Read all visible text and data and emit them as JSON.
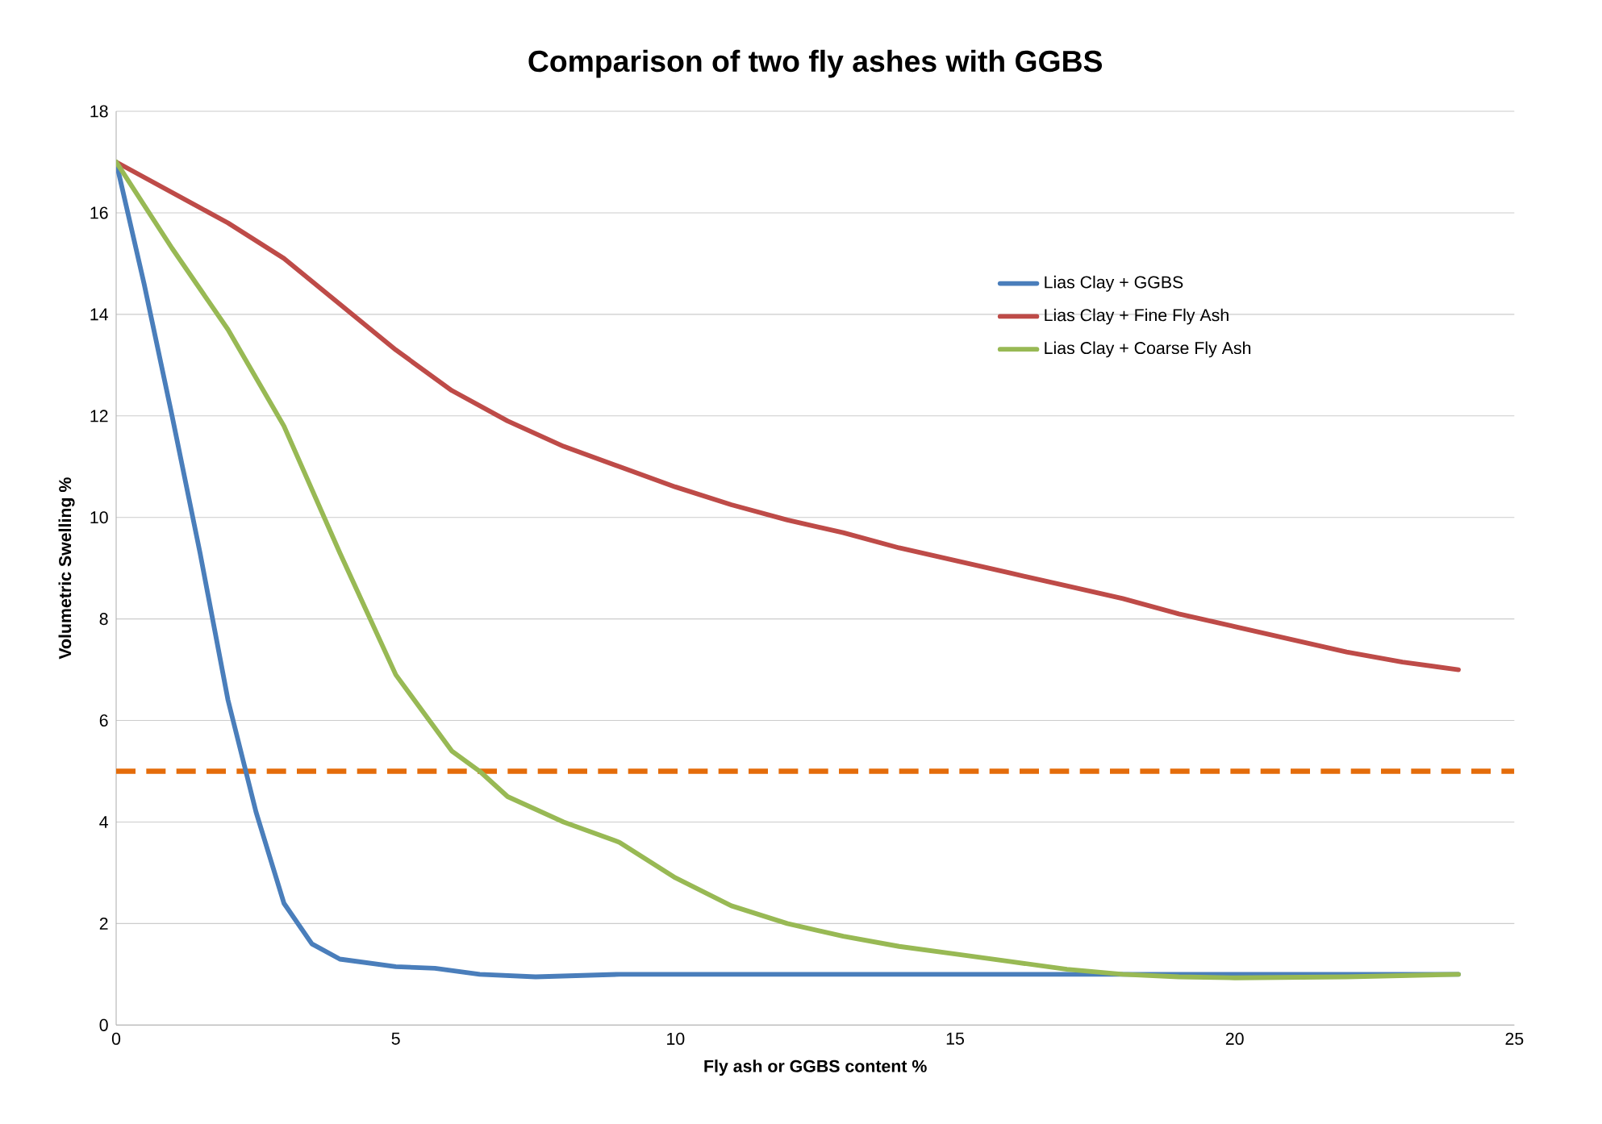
{
  "chart_data": {
    "type": "line",
    "title": "Comparison of two fly ashes with GGBS",
    "xlabel": "Fly ash or GGBS content %",
    "ylabel": "Volumetric Swelling %",
    "xlim": [
      0,
      25
    ],
    "xticks": [
      0,
      5,
      10,
      15,
      20,
      25
    ],
    "ylim": [
      0,
      18
    ],
    "yticks": [
      0,
      2,
      4,
      6,
      8,
      10,
      12,
      14,
      16,
      18
    ],
    "grid": "y",
    "legend": "top right",
    "marker": "none",
    "line_style": "solid",
    "series": [
      {
        "name": "Lias Clay + GGBS",
        "color": "#4a7ebb",
        "x": [
          0,
          0.5,
          1,
          1.5,
          2,
          2.5,
          3,
          3.5,
          4,
          5,
          5.7,
          6.5,
          7.5,
          9,
          12,
          18,
          24
        ],
        "values": [
          17,
          14.6,
          12,
          9.3,
          6.4,
          4.2,
          2.4,
          1.6,
          1.3,
          1.15,
          1.12,
          1.0,
          0.95,
          1.0,
          1.0,
          1.0,
          1.0
        ]
      },
      {
        "name": "Lias Clay + Fine Fly Ash",
        "color": "#be4b48",
        "x": [
          0,
          1,
          2,
          3,
          4,
          5,
          6,
          7,
          8,
          9,
          10,
          11,
          12,
          13,
          14,
          15,
          16,
          17,
          18,
          19,
          20,
          21,
          22,
          23,
          24
        ],
        "values": [
          17,
          16.4,
          15.8,
          15.1,
          14.2,
          13.3,
          12.5,
          11.9,
          11.4,
          11.0,
          10.6,
          10.25,
          9.95,
          9.7,
          9.4,
          9.15,
          8.9,
          8.65,
          8.4,
          8.1,
          7.85,
          7.6,
          7.35,
          7.15,
          7.0
        ]
      },
      {
        "name": "Lias Clay + Coarse Fly Ash",
        "color": "#98b954",
        "x": [
          0,
          1,
          2,
          3,
          4,
          5,
          6,
          6.5,
          7,
          8,
          9,
          10,
          11,
          12,
          13,
          14,
          15,
          16,
          17,
          18,
          19,
          20,
          22,
          24
        ],
        "values": [
          17,
          15.3,
          13.7,
          11.8,
          9.3,
          6.9,
          5.4,
          5.0,
          4.5,
          4.0,
          3.6,
          2.9,
          2.35,
          2.0,
          1.75,
          1.55,
          1.4,
          1.25,
          1.1,
          1.0,
          0.95,
          0.93,
          0.95,
          1.0
        ]
      }
    ],
    "ref_lines": [
      {
        "axis": "y",
        "value": 5,
        "color": "#e46c0a",
        "line_style": "dashed"
      }
    ]
  }
}
